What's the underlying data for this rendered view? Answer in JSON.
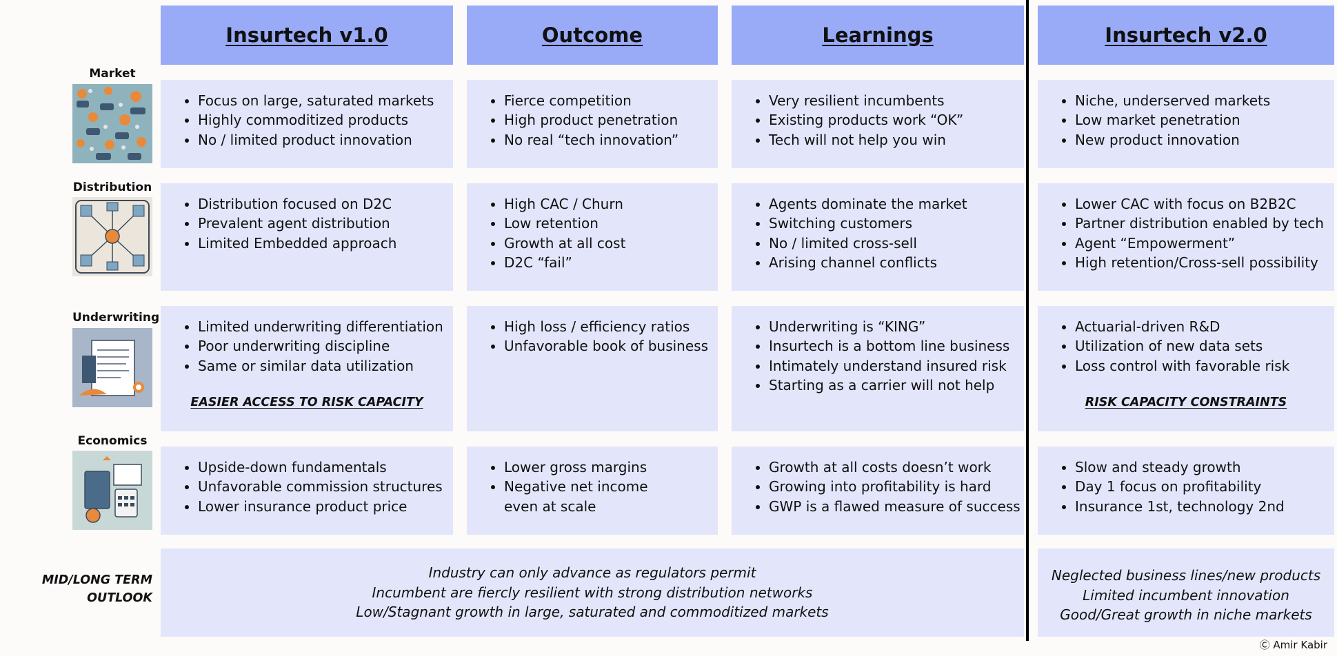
{
  "columns": [
    {
      "title": "Insurtech v1.0"
    },
    {
      "title": "Outcome"
    },
    {
      "title": "Learnings"
    },
    {
      "title": "Insurtech v2.0 "
    }
  ],
  "rows": [
    {
      "label": "Market",
      "image": "crowd-market-illustration",
      "cells": [
        {
          "items": [
            "Focus on large, saturated markets",
            "Highly commoditized products",
            "No / limited product innovation"
          ]
        },
        {
          "items": [
            "Fierce competition",
            "High product penetration",
            "No real “tech innovation”"
          ]
        },
        {
          "items": [
            "Very resilient incumbents",
            "Existing products work “OK”",
            "Tech will not help you win"
          ]
        },
        {
          "items": [
            "Niche, underserved markets",
            "Low market penetration",
            "New product innovation"
          ]
        }
      ]
    },
    {
      "label": "Distribution",
      "image": "distribution-network-illustration",
      "cells": [
        {
          "items": [
            "Distribution focused on D2C",
            "Prevalent agent distribution",
            "Limited Embedded approach"
          ]
        },
        {
          "items": [
            "High CAC / Churn",
            "Low retention",
            "Growth at all cost",
            "D2C “fail”"
          ]
        },
        {
          "items": [
            "Agents dominate the market",
            "Switching customers",
            "No / limited cross-sell",
            "Arising channel conflicts"
          ]
        },
        {
          "items": [
            "Lower CAC with focus on B2B2C",
            "Partner distribution enabled by tech",
            "Agent “Empowerment”",
            "High retention/Cross-sell possibility"
          ]
        }
      ]
    },
    {
      "label": "Underwriting",
      "image": "underwriting-document-illustration",
      "cells": [
        {
          "items": [
            "Limited underwriting differentiation",
            "Poor underwriting discipline",
            "Same or similar data utilization"
          ],
          "note": "EASIER ACCESS TO RISK CAPACITY"
        },
        {
          "items": [
            "High loss / efficiency ratios",
            "Unfavorable book of business"
          ]
        },
        {
          "items": [
            "Underwriting is “KING”",
            "Insurtech is a bottom line business",
            "Intimately understand insured risk",
            "Starting as a carrier will not help"
          ]
        },
        {
          "items": [
            "Actuarial-driven R&D",
            "Utilization of new data sets",
            "Loss control with favorable risk"
          ],
          "note": "RISK CAPACITY CONSTRAINTS "
        }
      ]
    },
    {
      "label": "Economics",
      "image": "economics-calculator-illustration",
      "cells": [
        {
          "items": [
            "Upside-down fundamentals",
            "Unfavorable commission structures",
            "Lower insurance product price"
          ]
        },
        {
          "items": [
            "Lower gross margins",
            "Negative net income",
            "even at scale"
          ]
        },
        {
          "items": [
            "Growth at all costs doesn’t work",
            "Growing into profitability is hard",
            "GWP is a flawed measure of success"
          ]
        },
        {
          "items": [
            "Slow and steady growth",
            "Day 1 focus on profitability",
            "Insurance 1st, technology 2nd"
          ]
        }
      ]
    }
  ],
  "outlook": {
    "label_line1": "MID/LONG TERM",
    "label_line2": "OUTLOOK",
    "left": [
      "Industry can only advance as regulators permit",
      "Incumbent are fiercly resilient with strong distribution networks",
      "Low/Stagnant growth in large, saturated and commoditized markets"
    ],
    "right": [
      "Neglected business lines/new products",
      "Limited incumbent innovation",
      "Good/Great growth in niche markets"
    ]
  },
  "credit": "Ⓒ Amir Kabir",
  "colors": {
    "header": "#99abf7",
    "cell": "#e3e6fa",
    "divider": "#000000"
  }
}
